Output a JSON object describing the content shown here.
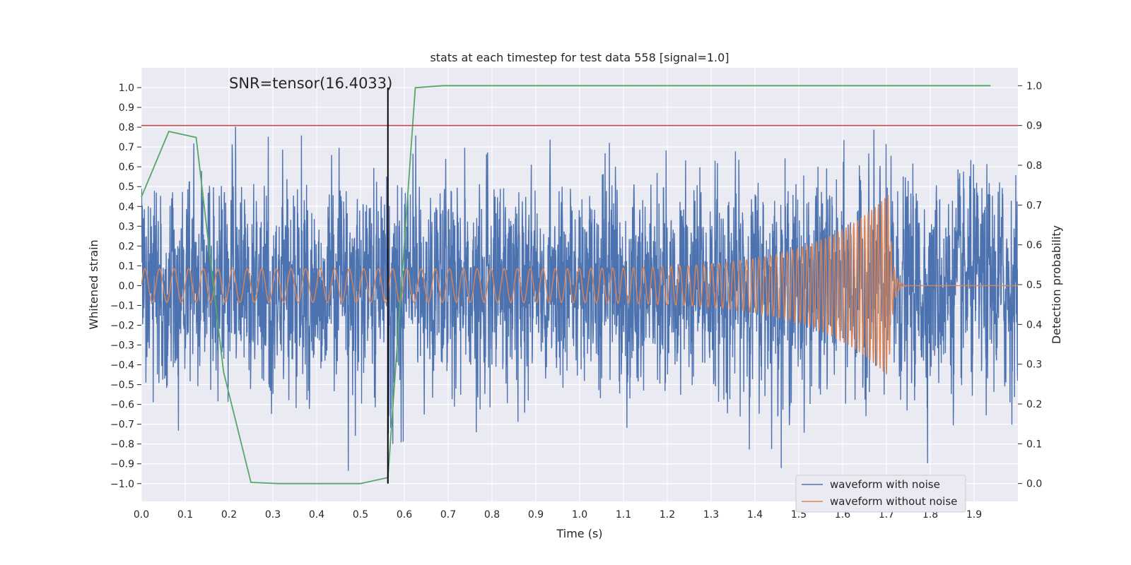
{
  "chart_data": {
    "type": "line",
    "title": "stats at each timestep for test data 558 [signal=1.0]",
    "xlabel": "Time (s)",
    "ylabel_left": "Whitened strain",
    "ylabel_right": "Detection probability",
    "xlim": [
      0.0,
      2.0
    ],
    "ylim_left": [
      -1.09,
      1.1
    ],
    "ylim_right": [
      -0.045,
      1.045
    ],
    "x_ticks": [
      "0.0",
      "0.1",
      "0.2",
      "0.3",
      "0.4",
      "0.5",
      "0.6",
      "0.7",
      "0.8",
      "0.9",
      "1.0",
      "1.1",
      "1.2",
      "1.3",
      "1.4",
      "1.5",
      "1.6",
      "1.7",
      "1.8",
      "1.9"
    ],
    "y_ticks_left": [
      "1.0",
      "0.9",
      "0.8",
      "0.7",
      "0.6",
      "0.5",
      "0.4",
      "0.3",
      "0.2",
      "0.1",
      "0.0",
      "−0.1",
      "−0.2",
      "−0.3",
      "−0.4",
      "−0.5",
      "−0.6",
      "−0.7",
      "−0.8",
      "−0.9",
      "−1.0"
    ],
    "y_ticks_right": [
      "1.0",
      "0.9",
      "0.8",
      "0.7",
      "0.6",
      "0.5",
      "0.4",
      "0.3",
      "0.2",
      "0.1",
      "0.0"
    ],
    "annotation": "SNR=tensor(16.4033)",
    "threshold_line": {
      "axis": "right",
      "value": 0.9,
      "color": "#c44e52"
    },
    "marker_line": {
      "x": 0.5625,
      "y_from": -1.0,
      "y_to": 1.0,
      "color": "#000000"
    },
    "grid": true,
    "legend_position": "lower-right",
    "series": [
      {
        "name": "waveform with noise",
        "axis": "left",
        "color": "#4c72b0",
        "generator": "gaussian-noise",
        "std": 0.24,
        "clip": [
          -0.99,
          0.99
        ],
        "sample_rate_hz": 2048,
        "t_start": 0.0,
        "t_end": 2.0
      },
      {
        "name": "waveform without noise",
        "axis": "left",
        "color": "#dd8452",
        "generator": "chirp",
        "t_merger": 1.705,
        "f_start_hz": 30,
        "f_merger_hz": 140,
        "amp_start": 0.085,
        "amp_merger": 0.46,
        "ringdown_end": 1.745
      },
      {
        "name": "detection probability",
        "axis": "right",
        "color": "#55a868",
        "in_legend": false,
        "x": [
          0.0,
          0.0625,
          0.125,
          0.1875,
          0.25,
          0.3125,
          0.375,
          0.4375,
          0.5,
          0.5625,
          0.625,
          0.6875,
          0.75,
          0.8125,
          0.875,
          0.9375,
          1.0,
          1.0625,
          1.125,
          1.1875,
          1.25,
          1.3125,
          1.375,
          1.4375,
          1.5,
          1.5625,
          1.625,
          1.6875,
          1.75,
          1.8125,
          1.875,
          1.9375
        ],
        "values": [
          0.72,
          0.885,
          0.87,
          0.28,
          0.003,
          0.0,
          0.0,
          0.0,
          0.0,
          0.015,
          0.995,
          1.0,
          1.0,
          1.0,
          1.0,
          1.0,
          1.0,
          1.0,
          1.0,
          1.0,
          1.0,
          1.0,
          1.0,
          1.0,
          1.0,
          1.0,
          1.0,
          1.0,
          1.0,
          1.0,
          1.0,
          1.0
        ]
      }
    ]
  }
}
